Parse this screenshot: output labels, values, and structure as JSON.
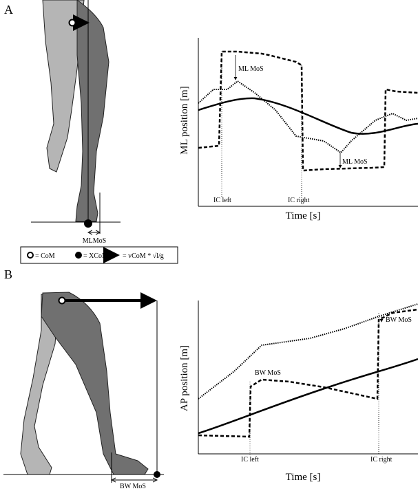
{
  "panel_a": {
    "label": "A",
    "ylabel": "ML position [m]",
    "xlabel": "Time [s]",
    "annotations": [
      "ML MoS",
      "ML MoS"
    ],
    "events": [
      "IC left",
      "IC right"
    ],
    "mos_label": "MLMoS"
  },
  "legend": {
    "com": "= CoM",
    "xcom": "= XCoM",
    "velocity": "= vCoM * √l/g"
  },
  "panel_b": {
    "label": "B",
    "ylabel": "AP position [m]",
    "xlabel": "Time [s]",
    "annotations": [
      "BW MoS",
      "BW MoS"
    ],
    "events": [
      "IC left",
      "IC right"
    ],
    "mos_label": "BW MoS"
  }
}
